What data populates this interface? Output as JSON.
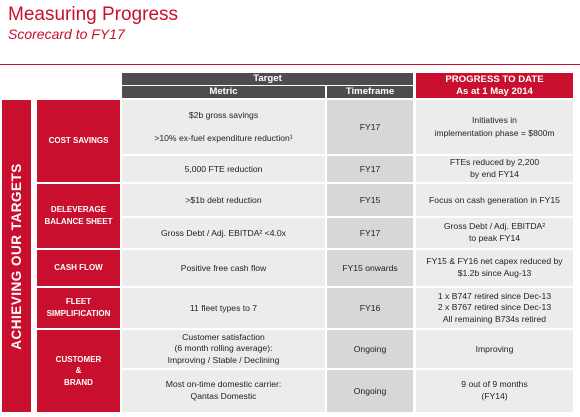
{
  "header": {
    "title": "Measuring Progress",
    "subtitle": "Scorecard to FY17"
  },
  "sidebar": {
    "label": "ACHIEVING OUR TARGETS"
  },
  "table": {
    "target_header": "Target",
    "metric_header": "Metric",
    "timeframe_header": "Timeframe",
    "progress_header_line1": "PROGRESS TO DATE",
    "progress_header_line2": "As at 1 May 2014",
    "categories": {
      "cost_savings": "COST SAVINGS",
      "deleverage_line1": "DELEVERAGE",
      "deleverage_line2": "BALANCE SHEET",
      "cash_flow": "CASH FLOW",
      "fleet_line1": "FLEET",
      "fleet_line2": "SIMPLIFICATION",
      "customer_line1": "CUSTOMER",
      "customer_line2": "&",
      "customer_line3": "BRAND"
    },
    "rows": {
      "r1": {
        "metric_line1": "$2b gross savings",
        "metric_line2": ">10% ex-fuel expenditure reduction¹",
        "timeframe": "FY17",
        "progress_line1": "Initiatives in",
        "progress_line2": "implementation phase = $800m"
      },
      "r2": {
        "metric": "5,000 FTE reduction",
        "timeframe": "FY17",
        "progress_line1": "FTEs reduced by 2,200",
        "progress_line2": "by end FY14"
      },
      "r3": {
        "metric": ">$1b debt reduction",
        "timeframe": "FY15",
        "progress": "Focus on cash generation in FY15"
      },
      "r4": {
        "metric": "Gross Debt / Adj. EBITDA² <4.0x",
        "timeframe": "FY17",
        "progress_line1": "Gross Debt / Adj. EBITDA²",
        "progress_line2": "to peak FY14"
      },
      "r5": {
        "metric": "Positive free cash flow",
        "timeframe": "FY15 onwards",
        "progress_line1": "FY15 & FY16 net capex reduced by",
        "progress_line2": "$1.2b since Aug-13"
      },
      "r6": {
        "metric": "11 fleet types to 7",
        "timeframe": "FY16",
        "progress_line1": "1 x B747 retired since Dec-13",
        "progress_line2": "2 x B767 retired since Dec-13",
        "progress_line3": "All remaining B734s retired"
      },
      "r7": {
        "metric_line1": "Customer satisfaction",
        "metric_line2": "(6 month rolling average):",
        "metric_line3": "Improving / Stable / Declining",
        "timeframe": "Ongoing",
        "progress": "Improving"
      },
      "r8": {
        "metric_line1": "Most on-time domestic carrier:",
        "metric_line2": "Qantas Domestic",
        "timeframe": "Ongoing",
        "progress_line1": "9 out of 9 months",
        "progress_line2": "(FY14)"
      }
    }
  }
}
